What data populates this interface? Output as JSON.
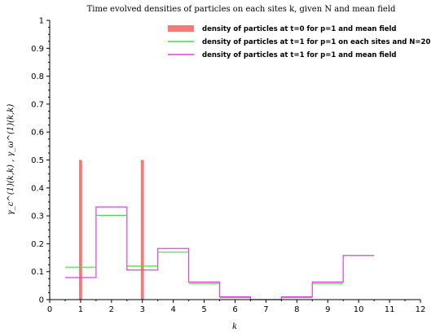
{
  "chart_data": {
    "type": "bar",
    "title": "Time evolved densities of particles on each sites k, given N and mean field",
    "xlabel": "k",
    "ylabel": "γ_c^(1)(k,k) , γ_ω^(1)(k,k)",
    "xlim": [
      0,
      12
    ],
    "ylim": [
      0,
      1
    ],
    "xticks": [
      "0",
      "1",
      "2",
      "3",
      "4",
      "5",
      "6",
      "7",
      "8",
      "9",
      "10",
      "11",
      "12"
    ],
    "yticks": [
      "0",
      "0.1",
      "0.2",
      "0.3",
      "0.4",
      "0.5",
      "0.6",
      "0.7",
      "0.8",
      "0.9",
      "1"
    ],
    "legend_position": "top-right",
    "series": [
      {
        "name": "density of particles at t=0 for p=1 and mean field",
        "kind": "bar",
        "color": "#f87878",
        "x": [
          1,
          3
        ],
        "values": [
          0.5,
          0.5
        ]
      },
      {
        "name": "density of particles at t=1 for p=1 on each sites and N=20",
        "kind": "steps",
        "color": "#44dd44",
        "x": [
          1,
          2,
          3,
          4,
          5,
          6,
          7,
          8,
          9,
          10
        ],
        "values": [
          0.116,
          0.302,
          0.12,
          0.17,
          0.058,
          0.007,
          0.0,
          0.007,
          0.058,
          0.158
        ]
      },
      {
        "name": "density of particles at t=1 for p=1 and mean field",
        "kind": "step-line",
        "color": "#e040e0",
        "x": [
          1,
          2,
          3,
          4,
          5,
          6,
          7,
          8,
          9,
          10
        ],
        "values": [
          0.079,
          0.332,
          0.106,
          0.183,
          0.063,
          0.01,
          0.0,
          0.01,
          0.063,
          0.158
        ]
      }
    ]
  }
}
